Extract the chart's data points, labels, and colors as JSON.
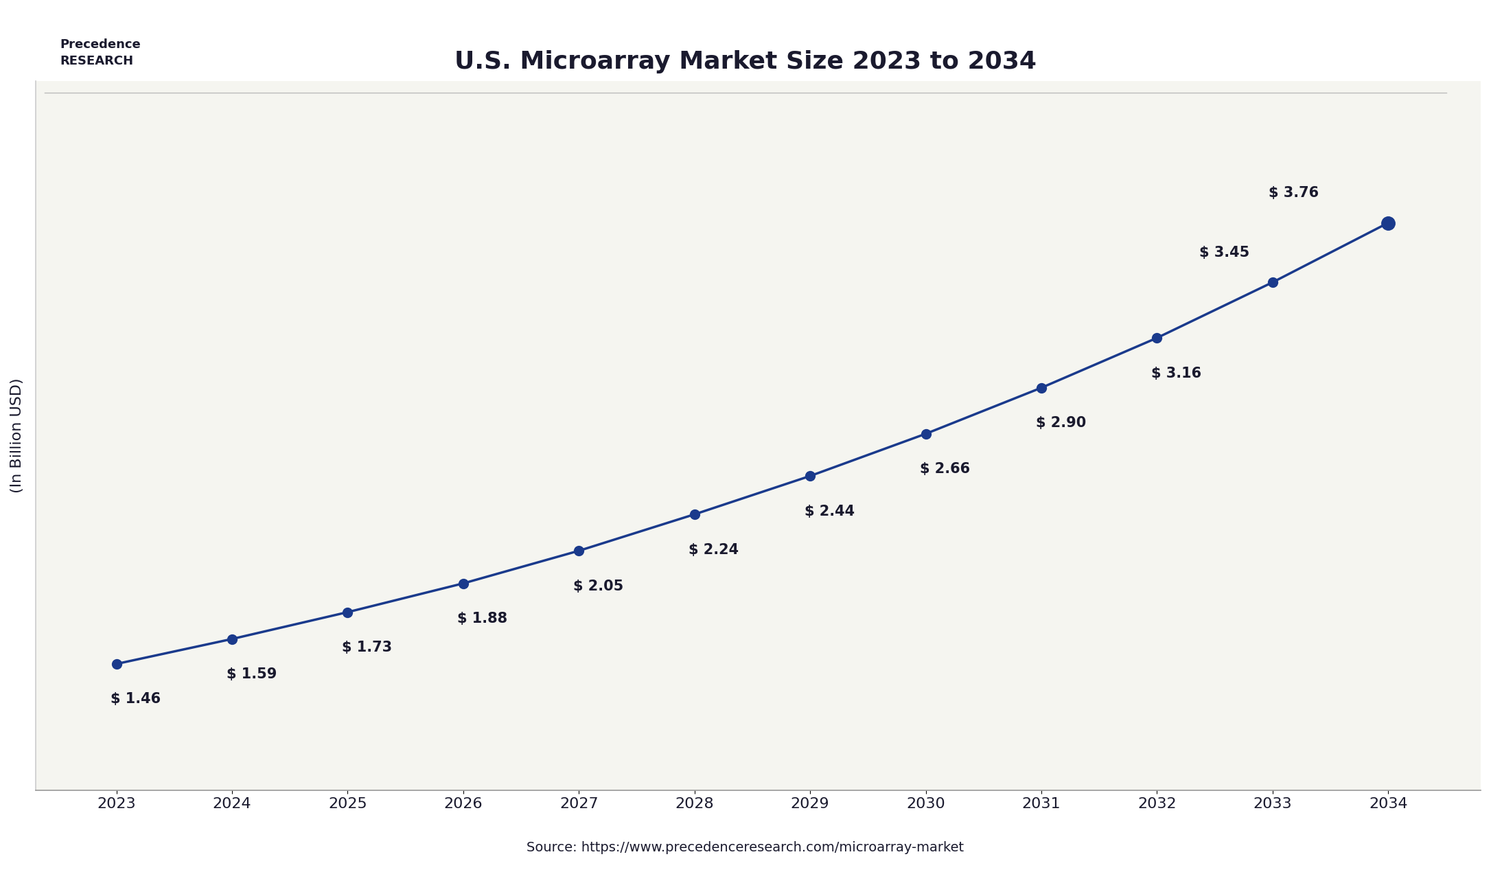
{
  "title": "U.S. Microarray Market Size 2023 to 2034",
  "ylabel": "(In Billion USD)",
  "source_text": "Source: https://www.precedenceresearch.com/microarray-market",
  "years": [
    2023,
    2024,
    2025,
    2026,
    2027,
    2028,
    2029,
    2030,
    2031,
    2032,
    2033,
    2034
  ],
  "values": [
    1.46,
    1.59,
    1.73,
    1.88,
    2.05,
    2.24,
    2.44,
    2.66,
    2.9,
    3.16,
    3.45,
    3.76
  ],
  "labels": [
    "$ 1.46",
    "$ 1.59",
    "$ 1.73",
    "$ 1.88",
    "$ 2.05",
    "$ 2.24",
    "$ 2.44",
    "$ 2.66",
    "$ 2.90",
    "$ 3.16",
    "$ 3.45",
    "$ 3.76"
  ],
  "line_color": "#1a3a8c",
  "marker_color": "#1a3a8c",
  "last_marker_color": "#1a3a8c",
  "bg_color": "#ffffff",
  "plot_bg_color": "#f5f5f0",
  "title_color": "#1a1a2e",
  "label_color": "#1a1a2e",
  "source_color": "#1a1a2e",
  "ylabel_color": "#1a1a2e",
  "ylim": [
    0.8,
    4.5
  ],
  "xlim": [
    2022.3,
    2034.8
  ],
  "title_fontsize": 26,
  "label_fontsize": 15,
  "axis_tick_fontsize": 16,
  "ylabel_fontsize": 16,
  "source_fontsize": 14,
  "line_width": 2.5,
  "marker_size": 10,
  "last_marker_size": 14
}
